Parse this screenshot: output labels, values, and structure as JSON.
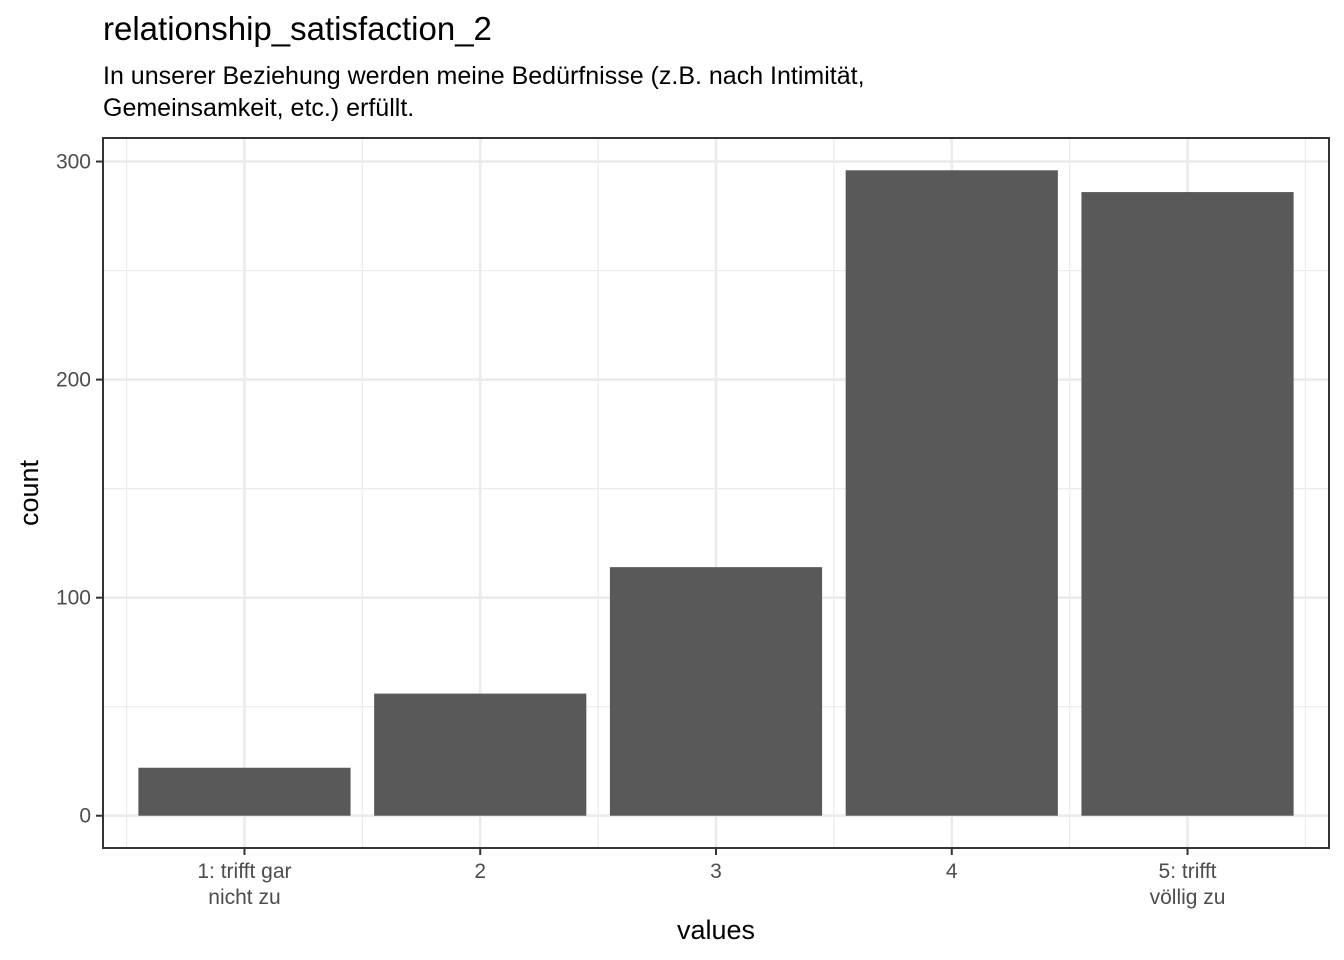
{
  "chart_data": {
    "type": "bar",
    "title": "relationship_satisfaction_2",
    "subtitle": [
      "In unserer Beziehung werden meine Bedürfnisse (z.B. nach Intimität,",
      "Gemeinsamkeit, etc.) erfüllt."
    ],
    "xlabel": "values",
    "ylabel": "count",
    "categories": [
      [
        "1: trifft gar",
        "nicht zu"
      ],
      [
        "2"
      ],
      [
        "3"
      ],
      [
        "4"
      ],
      [
        "5: trifft",
        "völlig zu"
      ]
    ],
    "values": [
      22,
      56,
      114,
      296,
      286
    ],
    "ylim": [
      -14.8,
      310.8
    ],
    "yticks": [
      0,
      100,
      200,
      300
    ],
    "grid": true,
    "bar_color": "#595959",
    "grid_color": "#ebebeb",
    "panel_border_color": "#333333"
  }
}
